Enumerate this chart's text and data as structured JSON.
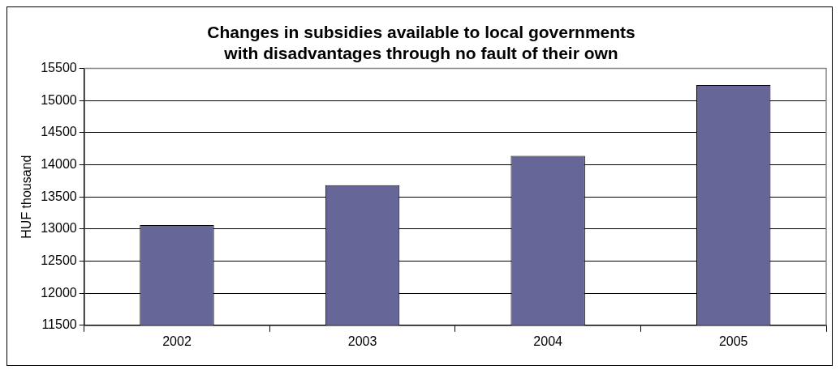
{
  "chart_data": {
    "type": "bar",
    "title": [
      "Changes in subsidies available to local governments",
      "with disadvantages through no fault of their own"
    ],
    "ylabel": "HUF thousand",
    "categories": [
      "2002",
      "2003",
      "2004",
      "2005"
    ],
    "values": [
      13060,
      13680,
      14140,
      15240
    ],
    "color": "#666699",
    "ylim": [
      11500,
      15500
    ],
    "yticks": [
      11500,
      12000,
      12500,
      13000,
      13500,
      14000,
      14500,
      15000,
      15500
    ],
    "grid": "y",
    "legend": false
  }
}
